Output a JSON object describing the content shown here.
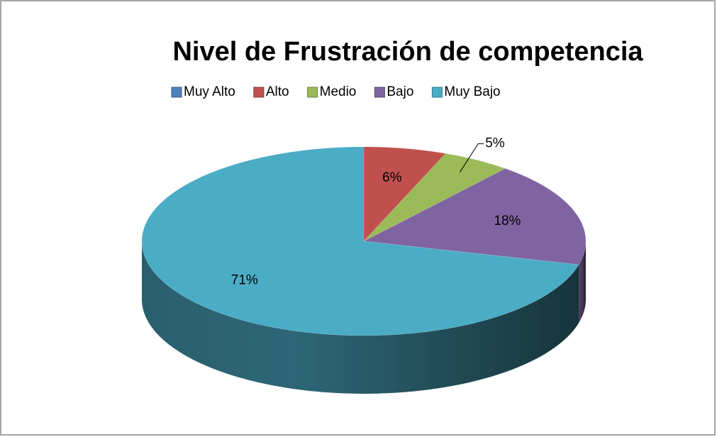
{
  "chart_data": {
    "type": "pie3d",
    "title": "Nivel de Frustración de competencia",
    "categories": [
      "Muy Alto",
      "Alto",
      "Medio",
      "Bajo",
      "Muy Bajo"
    ],
    "values": [
      0,
      6,
      5,
      18,
      71
    ],
    "value_labels": [
      null,
      "6%",
      "5%",
      "18%",
      "71%"
    ],
    "colors": [
      "#4f81bd",
      "#c0504d",
      "#9bbb59",
      "#8064a2",
      "#4bacc6"
    ],
    "legend": "top"
  }
}
